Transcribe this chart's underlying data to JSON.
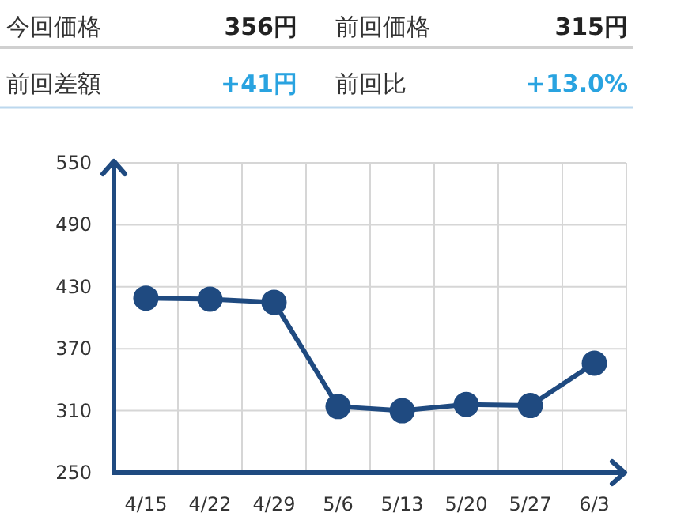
{
  "chart_data": [
    {
      "type": "other",
      "annotations": [
        "今回価格",
        "356円",
        "前回価格",
        "315円",
        "前回差額",
        "+41円",
        "前回比",
        "+13.0%"
      ]
    },
    {
      "type": "line",
      "categories": [
        "4/15",
        "4/22",
        "4/29",
        "5/6",
        "5/13",
        "5/20",
        "5/27",
        "6/3"
      ],
      "values": [
        419,
        418,
        415,
        314,
        310,
        316,
        315,
        356
      ],
      "color": "#1f4a80",
      "ylim": [
        250,
        550
      ],
      "yticks": [
        250,
        310,
        370,
        430,
        490,
        550
      ],
      "grid": true,
      "marker": "circle",
      "line_style": "solid"
    }
  ]
}
